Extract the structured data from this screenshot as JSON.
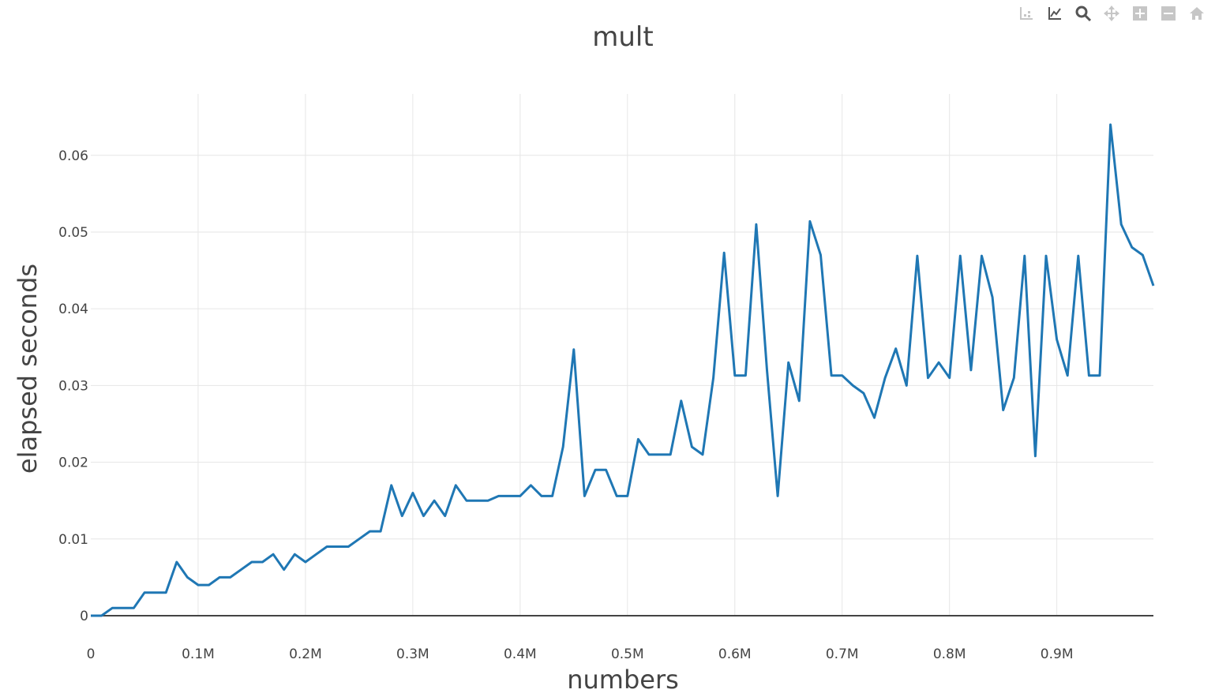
{
  "modebar": [
    {
      "name": "compare-data-icon",
      "label": "compare"
    },
    {
      "name": "show-closest-icon",
      "label": "closest"
    },
    {
      "name": "zoom-icon",
      "label": "zoom",
      "active": true
    },
    {
      "name": "pan-icon",
      "label": "pan"
    },
    {
      "name": "zoom-in-icon",
      "label": "zoom in"
    },
    {
      "name": "zoom-out-icon",
      "label": "zoom out"
    },
    {
      "name": "reset-axes-icon",
      "label": "reset"
    }
  ],
  "colors": {
    "line": "#1f77b4",
    "grid": "#e6e6e6",
    "zeroline": "#444444",
    "text": "#444444"
  },
  "chart_data": {
    "type": "line",
    "title": "mult",
    "xlabel": "numbers",
    "ylabel": "elapsed seconds",
    "xlim": [
      0,
      990000
    ],
    "ylim": [
      0,
      0.068
    ],
    "grid": true,
    "x_ticks": [
      {
        "value": 0,
        "label": "0"
      },
      {
        "value": 100000,
        "label": "0.1M"
      },
      {
        "value": 200000,
        "label": "0.2M"
      },
      {
        "value": 300000,
        "label": "0.3M"
      },
      {
        "value": 400000,
        "label": "0.4M"
      },
      {
        "value": 500000,
        "label": "0.5M"
      },
      {
        "value": 600000,
        "label": "0.6M"
      },
      {
        "value": 700000,
        "label": "0.7M"
      },
      {
        "value": 800000,
        "label": "0.8M"
      },
      {
        "value": 900000,
        "label": "0.9M"
      }
    ],
    "y_ticks": [
      {
        "value": 0,
        "label": "0"
      },
      {
        "value": 0.01,
        "label": "0.01"
      },
      {
        "value": 0.02,
        "label": "0.02"
      },
      {
        "value": 0.03,
        "label": "0.03"
      },
      {
        "value": 0.04,
        "label": "0.04"
      },
      {
        "value": 0.05,
        "label": "0.05"
      },
      {
        "value": 0.06,
        "label": "0.06"
      }
    ],
    "series": [
      {
        "x": [
          0,
          10000,
          20000,
          30000,
          40000,
          50000,
          60000,
          70000,
          80000,
          90000,
          100000,
          110000,
          120000,
          130000,
          140000,
          150000,
          160000,
          170000,
          180000,
          190000,
          200000,
          210000,
          220000,
          230000,
          240000,
          250000,
          260000,
          270000,
          280000,
          290000,
          300000,
          310000,
          320000,
          330000,
          340000,
          350000,
          360000,
          370000,
          380000,
          390000,
          400000,
          410000,
          420000,
          430000,
          440000,
          450000,
          460000,
          470000,
          480000,
          490000,
          500000,
          510000,
          520000,
          530000,
          540000,
          550000,
          560000,
          570000,
          580000,
          590000,
          600000,
          610000,
          620000,
          630000,
          640000,
          650000,
          660000,
          670000,
          680000,
          690000,
          700000,
          710000,
          720000,
          730000,
          740000,
          750000,
          760000,
          770000,
          780000,
          790000,
          800000,
          810000,
          820000,
          830000,
          840000,
          850000,
          860000,
          870000,
          880000,
          890000,
          900000,
          910000,
          920000,
          930000,
          940000,
          950000,
          960000,
          970000,
          980000,
          990000
        ],
        "y": [
          0,
          0,
          0.001,
          0.001,
          0.001,
          0.003,
          0.003,
          0.003,
          0.007,
          0.005,
          0.004,
          0.004,
          0.005,
          0.005,
          0.006,
          0.007,
          0.007,
          0.008,
          0.006,
          0.008,
          0.007,
          0.008,
          0.009,
          0.009,
          0.009,
          0.01,
          0.011,
          0.011,
          0.017,
          0.013,
          0.016,
          0.013,
          0.015,
          0.013,
          0.017,
          0.015,
          0.015,
          0.015,
          0.0156,
          0.0156,
          0.0156,
          0.017,
          0.0156,
          0.0156,
          0.022,
          0.0347,
          0.0156,
          0.019,
          0.019,
          0.0156,
          0.0156,
          0.023,
          0.021,
          0.021,
          0.021,
          0.028,
          0.022,
          0.021,
          0.031,
          0.0473,
          0.0313,
          0.0313,
          0.051,
          0.032,
          0.0156,
          0.033,
          0.028,
          0.0514,
          0.047,
          0.0313,
          0.0313,
          0.03,
          0.029,
          0.0258,
          0.031,
          0.0348,
          0.03,
          0.0469,
          0.031,
          0.033,
          0.031,
          0.0469,
          0.032,
          0.0469,
          0.0415,
          0.0268,
          0.031,
          0.0469,
          0.0208,
          0.0469,
          0.036,
          0.0313,
          0.0469,
          0.0313,
          0.0313,
          0.064,
          0.051,
          0.048,
          0.047,
          0.043
        ]
      }
    ]
  }
}
